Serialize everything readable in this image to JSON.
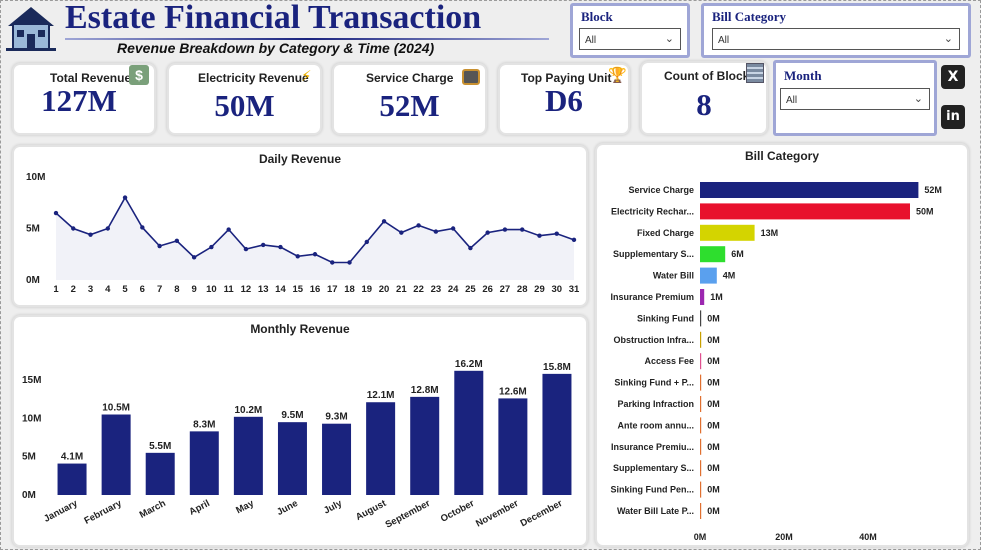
{
  "header": {
    "title": "Estate Financial Transaction",
    "subtitle": "Revenue Breakdown by Category & Time (2024)"
  },
  "filters": {
    "block": {
      "label": "Block",
      "value": "All"
    },
    "bill_category": {
      "label": "Bill Category",
      "value": "All"
    },
    "month": {
      "label": "Month",
      "value": "All"
    }
  },
  "kpis": [
    {
      "label": "Total Revenue",
      "value": "127M",
      "icon": "money-bag-icon"
    },
    {
      "label": "Electricity Revenue",
      "value": "50M",
      "icon": "lightning-icon"
    },
    {
      "label": "Service Charge",
      "value": "52M",
      "icon": "toolbox-icon"
    },
    {
      "label": "Top Paying Unit",
      "value": "D6",
      "icon": "trophy-icon"
    },
    {
      "label": "Count of Block",
      "value": "8",
      "icon": "building-icon"
    }
  ],
  "social": {
    "x": "X",
    "linkedin": "in"
  },
  "colors": {
    "navy": "#1a237e",
    "bar_red": "#e8112d",
    "bar_yellow": "#d4d400",
    "bar_green": "#2ede2e",
    "bar_blue": "#5aa0ee",
    "bar_purple": "#9c27b0"
  },
  "chart_data": [
    {
      "type": "line",
      "title": "Daily Revenue",
      "x": [
        "1",
        "2",
        "3",
        "4",
        "5",
        "6",
        "7",
        "8",
        "9",
        "10",
        "11",
        "12",
        "13",
        "14",
        "15",
        "16",
        "17",
        "18",
        "19",
        "20",
        "21",
        "22",
        "23",
        "24",
        "25",
        "26",
        "27",
        "28",
        "29",
        "30",
        "31"
      ],
      "values": [
        6.5,
        5.0,
        4.4,
        5.0,
        8.0,
        5.1,
        3.3,
        3.8,
        2.2,
        3.2,
        4.9,
        3.0,
        3.4,
        3.2,
        2.3,
        2.5,
        1.7,
        1.7,
        3.7,
        5.7,
        4.6,
        5.3,
        4.7,
        5.0,
        3.1,
        4.6,
        4.9,
        4.9,
        4.3,
        4.5,
        3.9
      ],
      "yticks": [
        "0M",
        "5M",
        "10M"
      ],
      "ylim": [
        0,
        10
      ]
    },
    {
      "type": "bar",
      "title": "Monthly Revenue",
      "categories": [
        "January",
        "February",
        "March",
        "April",
        "May",
        "June",
        "July",
        "August",
        "September",
        "October",
        "November",
        "December"
      ],
      "values": [
        4.1,
        10.5,
        5.5,
        8.3,
        10.2,
        9.5,
        9.3,
        12.1,
        12.8,
        16.2,
        12.6,
        15.8
      ],
      "labels": [
        "4.1M",
        "10.5M",
        "5.5M",
        "8.3M",
        "10.2M",
        "9.5M",
        "9.3M",
        "12.1M",
        "12.8M",
        "16.2M",
        "12.6M",
        "15.8M"
      ],
      "yticks": [
        "0M",
        "5M",
        "10M",
        "15M"
      ],
      "ylim": [
        0,
        18
      ]
    },
    {
      "type": "bar",
      "orientation": "horizontal",
      "title": "Bill Category",
      "categories": [
        "Service Charge",
        "Electricity Rechar...",
        "Fixed Charge",
        "Supplementary S...",
        "Water Bill",
        "Insurance Premium",
        "Sinking Fund",
        "Obstruction Infra...",
        "Access Fee",
        "Sinking Fund + P...",
        "Parking Infraction",
        "Ante room annu...",
        "Insurance Premiu...",
        "Supplementary S...",
        "Sinking Fund Pen...",
        "Water Bill Late P..."
      ],
      "values": [
        52,
        50,
        13,
        6,
        4,
        1,
        0.15,
        0.1,
        0.1,
        0.1,
        0.1,
        0.1,
        0.1,
        0.1,
        0.1,
        0.1
      ],
      "labels": [
        "52M",
        "50M",
        "13M",
        "6M",
        "4M",
        "1M",
        "0M",
        "0M",
        "0M",
        "0M",
        "0M",
        "0M",
        "0M",
        "0M",
        "0M",
        "0M"
      ],
      "colors": [
        "#1a237e",
        "#e8112d",
        "#d4d400",
        "#2ede2e",
        "#5aa0ee",
        "#9c27b0",
        "#444444",
        "#c8a000",
        "#e05090",
        "#e07030",
        "#e07030",
        "#e07030",
        "#e07030",
        "#e07030",
        "#e07030",
        "#e07030"
      ],
      "xticks": [
        "0M",
        "20M",
        "40M"
      ],
      "xlim": [
        0,
        55
      ]
    }
  ]
}
